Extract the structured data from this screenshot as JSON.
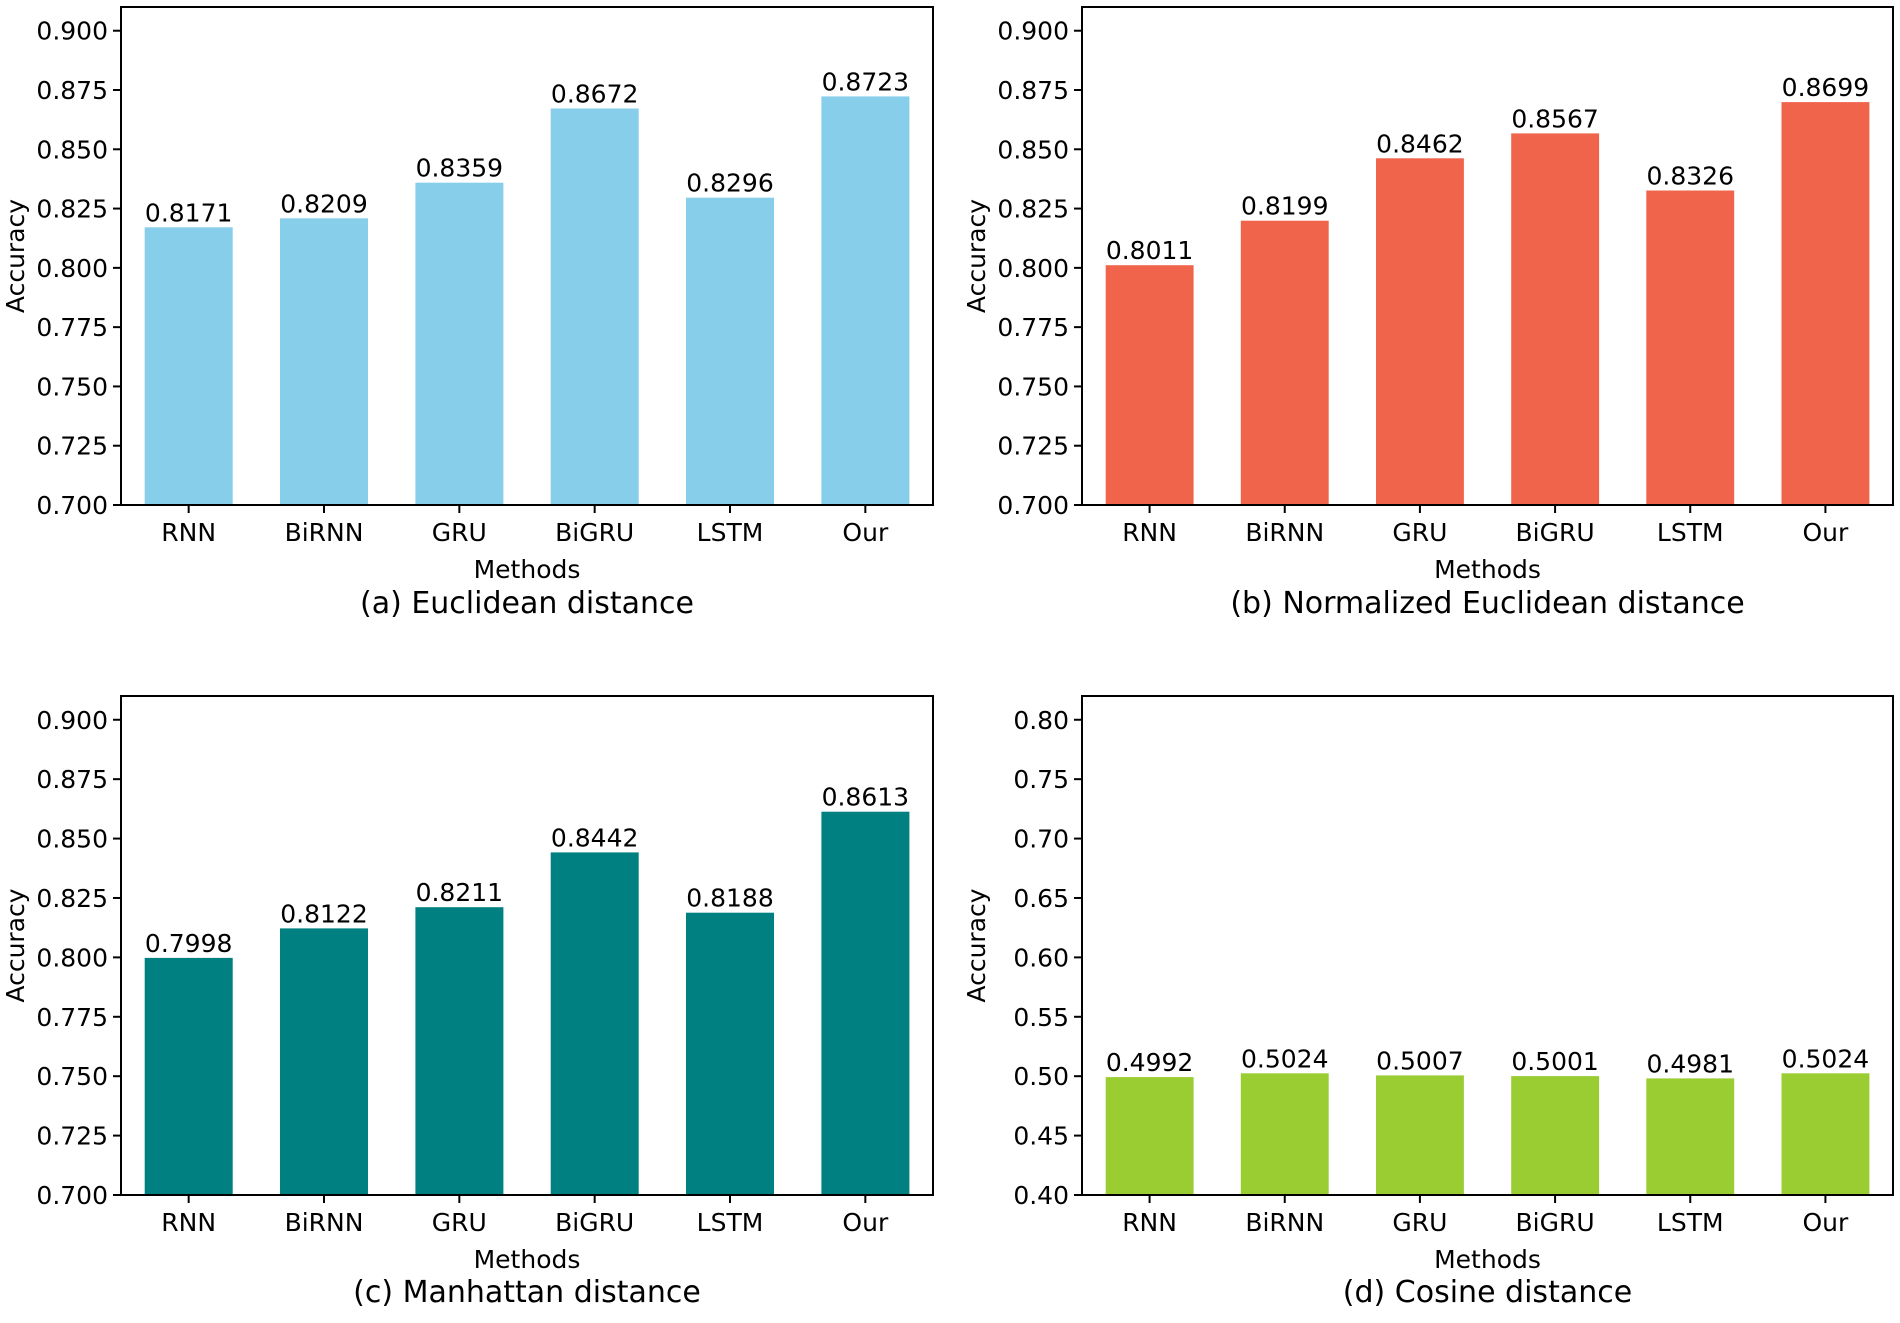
{
  "chart_data": [
    {
      "type": "bar",
      "caption": "(a) Euclidean distance",
      "categories": [
        "RNN",
        "BiRNN",
        "GRU",
        "BiGRU",
        "LSTM",
        "Our"
      ],
      "values": [
        0.8171,
        0.8209,
        0.8359,
        0.8672,
        0.8296,
        0.8723
      ],
      "value_labels": [
        "0.8171",
        "0.8209",
        "0.8359",
        "0.8672",
        "0.8296",
        "0.8723"
      ],
      "xlabel": "Methods",
      "ylabel": "Accuracy",
      "ylim": [
        0.7,
        0.91
      ],
      "yticks": [
        "0.700",
        "0.725",
        "0.750",
        "0.775",
        "0.800",
        "0.825",
        "0.850",
        "0.875",
        "0.900"
      ],
      "color": "#87ceeb"
    },
    {
      "type": "bar",
      "caption": "(b) Normalized Euclidean distance",
      "categories": [
        "RNN",
        "BiRNN",
        "GRU",
        "BiGRU",
        "LSTM",
        "Our"
      ],
      "values": [
        0.8011,
        0.8199,
        0.8462,
        0.8567,
        0.8326,
        0.8699
      ],
      "value_labels": [
        "0.8011",
        "0.8199",
        "0.8462",
        "0.8567",
        "0.8326",
        "0.8699"
      ],
      "xlabel": "Methods",
      "ylabel": "Accuracy",
      "ylim": [
        0.7,
        0.91
      ],
      "yticks": [
        "0.700",
        "0.725",
        "0.750",
        "0.775",
        "0.800",
        "0.825",
        "0.850",
        "0.875",
        "0.900"
      ],
      "color": "#f0644b"
    },
    {
      "type": "bar",
      "caption": "(c) Manhattan distance",
      "categories": [
        "RNN",
        "BiRNN",
        "GRU",
        "BiGRU",
        "LSTM",
        "Our"
      ],
      "values": [
        0.7998,
        0.8122,
        0.8211,
        0.8442,
        0.8188,
        0.8613
      ],
      "value_labels": [
        "0.7998",
        "0.8122",
        "0.8211",
        "0.8442",
        "0.8188",
        "0.8613"
      ],
      "xlabel": "Methods",
      "ylabel": "Accuracy",
      "ylim": [
        0.7,
        0.91
      ],
      "yticks": [
        "0.700",
        "0.725",
        "0.750",
        "0.775",
        "0.800",
        "0.825",
        "0.850",
        "0.875",
        "0.900"
      ],
      "color": "#008080"
    },
    {
      "type": "bar",
      "caption": "(d) Cosine distance",
      "categories": [
        "RNN",
        "BiRNN",
        "GRU",
        "BiGRU",
        "LSTM",
        "Our"
      ],
      "values": [
        0.4992,
        0.5024,
        0.5007,
        0.5001,
        0.4981,
        0.5024
      ],
      "value_labels": [
        "0.4992",
        "0.5024",
        "0.5007",
        "0.5001",
        "0.4981",
        "0.5024"
      ],
      "xlabel": "Methods",
      "ylabel": "Accuracy",
      "ylim": [
        0.4,
        0.82
      ],
      "yticks": [
        "0.40",
        "0.45",
        "0.50",
        "0.55",
        "0.60",
        "0.65",
        "0.70",
        "0.75",
        "0.80"
      ],
      "color": "#9acd32"
    }
  ]
}
